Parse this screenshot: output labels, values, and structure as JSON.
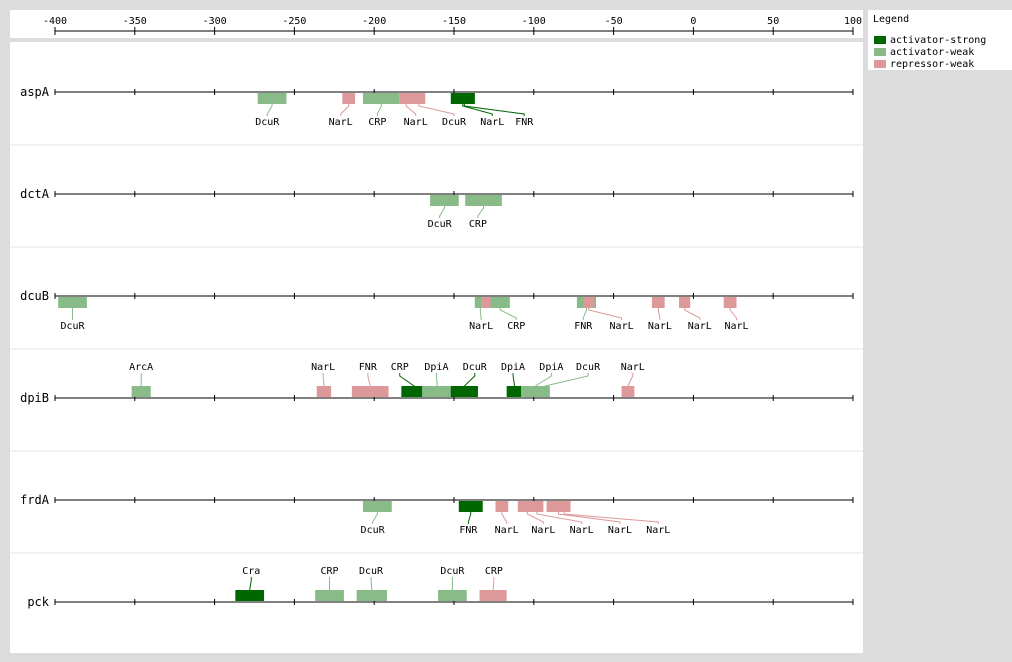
{
  "axis": {
    "ticks": [
      -400,
      -350,
      -300,
      -250,
      -200,
      -150,
      -100,
      -50,
      0,
      50,
      100
    ],
    "range": [
      -400,
      100
    ]
  },
  "legend": {
    "title": "Legend",
    "items": [
      {
        "label": "activator-strong",
        "color": "#006600"
      },
      {
        "label": "activator-weak",
        "color": "#88bb88"
      },
      {
        "label": "repressor-weak",
        "color": "#dd9999"
      }
    ]
  },
  "colors": {
    "activator-strong": "#006600",
    "activator-weak": "#88bb88",
    "repressor-weak": "#dd9999"
  },
  "genes": [
    {
      "name": "aspA",
      "sites": [
        {
          "start": -273,
          "end": -255,
          "type": "activator-weak",
          "label": "DcuR",
          "pos": "below",
          "lx": -267
        },
        {
          "start": -220,
          "end": -212,
          "type": "repressor-weak",
          "label": "NarL",
          "pos": "below",
          "lx": -221
        },
        {
          "start": -207,
          "end": -184,
          "type": "activator-weak",
          "label": "CRP",
          "pos": "below",
          "lx": -198
        },
        {
          "start": -184,
          "end": -176,
          "type": "repressor-weak",
          "label": "NarL",
          "pos": "below",
          "lx": -174
        },
        {
          "start": -176,
          "end": -168,
          "type": "repressor-weak",
          "label": "DcuR",
          "pos": "below",
          "lx": -150
        },
        {
          "start": -152,
          "end": -137,
          "type": "activator-strong",
          "label": "NarL",
          "pos": "below",
          "lx": -126
        },
        {
          "start": -150,
          "end": -137,
          "type": "activator-strong",
          "label": "FNR",
          "pos": "below",
          "lx": -106
        }
      ]
    },
    {
      "name": "dctA",
      "sites": [
        {
          "start": -165,
          "end": -147,
          "type": "activator-weak",
          "label": "DcuR",
          "pos": "below",
          "lx": -159
        },
        {
          "start": -143,
          "end": -120,
          "type": "activator-weak",
          "label": "CRP",
          "pos": "below",
          "lx": -135
        }
      ]
    },
    {
      "name": "dcuB",
      "sites": [
        {
          "start": -398,
          "end": -380,
          "type": "activator-weak",
          "label": "DcuR",
          "pos": "below",
          "lx": -389
        },
        {
          "start": -137,
          "end": -130,
          "type": "activator-weak",
          "label": "NarL",
          "pos": "below",
          "lx": -133
        },
        {
          "start": -133,
          "end": -126,
          "type": "repressor-weak",
          "label": "NarL",
          "pos": "none",
          "lx": -130
        },
        {
          "start": -127,
          "end": -115,
          "type": "activator-weak",
          "label": "CRP",
          "pos": "below",
          "lx": -111
        },
        {
          "start": -73,
          "end": -61,
          "type": "activator-weak",
          "label": "FNR",
          "pos": "below",
          "lx": -69
        },
        {
          "start": -69,
          "end": -62,
          "type": "repressor-weak",
          "label": "NarL",
          "pos": "below",
          "lx": -45
        },
        {
          "start": -26,
          "end": -18,
          "type": "repressor-weak",
          "label": "NarL",
          "pos": "below",
          "lx": -21
        },
        {
          "start": -9,
          "end": -2,
          "type": "repressor-weak",
          "label": "NarL",
          "pos": "below",
          "lx": 4
        },
        {
          "start": 19,
          "end": 27,
          "type": "repressor-weak",
          "label": "NarL",
          "pos": "below",
          "lx": 27
        }
      ]
    },
    {
      "name": "dpiB",
      "sites": [
        {
          "start": -352,
          "end": -340,
          "type": "activator-weak",
          "label": "ArcA",
          "pos": "above",
          "lx": -346
        },
        {
          "start": -236,
          "end": -227,
          "type": "repressor-weak",
          "label": "NarL",
          "pos": "above",
          "lx": -232
        },
        {
          "start": -214,
          "end": -191,
          "type": "repressor-weak",
          "label": "FNR",
          "pos": "above",
          "lx": -204
        },
        {
          "start": -183,
          "end": -167,
          "type": "activator-strong",
          "label": "CRP",
          "pos": "above",
          "lx": -184
        },
        {
          "start": -170,
          "end": -151,
          "type": "activator-weak",
          "label": "DpiA",
          "pos": "above",
          "lx": -161
        },
        {
          "start": -152,
          "end": -135,
          "type": "activator-strong",
          "label": "DcuR",
          "pos": "above",
          "lx": -137
        },
        {
          "start": -117,
          "end": -107,
          "type": "activator-strong",
          "label": "DpiA",
          "pos": "above",
          "lx": -113
        },
        {
          "start": -108,
          "end": -90,
          "type": "activator-weak",
          "label": "DpiA",
          "pos": "above",
          "lx": -89
        },
        {
          "start": -96,
          "end": -90,
          "type": "activator-weak",
          "label": "DcuR",
          "pos": "above",
          "lx": -66
        },
        {
          "start": -45,
          "end": -37,
          "type": "repressor-weak",
          "label": "NarL",
          "pos": "above",
          "lx": -38
        }
      ]
    },
    {
      "name": "frdA",
      "sites": [
        {
          "start": -207,
          "end": -189,
          "type": "activator-weak",
          "label": "DcuR",
          "pos": "below",
          "lx": -201
        },
        {
          "start": -147,
          "end": -132,
          "type": "activator-strong",
          "label": "FNR",
          "pos": "below",
          "lx": -141
        },
        {
          "start": -124,
          "end": -116,
          "type": "repressor-weak",
          "label": "NarL",
          "pos": "below",
          "lx": -117
        },
        {
          "start": -110,
          "end": -98,
          "type": "repressor-weak",
          "label": "NarL",
          "pos": "below",
          "lx": -94
        },
        {
          "start": -102,
          "end": -94,
          "type": "repressor-weak",
          "label": "NarL",
          "pos": "below",
          "lx": -70
        },
        {
          "start": -92,
          "end": -77,
          "type": "repressor-weak",
          "label": "NarL",
          "pos": "below",
          "lx": -46
        },
        {
          "start": -85,
          "end": -77,
          "type": "repressor-weak",
          "label": "NarL",
          "pos": "below",
          "lx": -22
        }
      ]
    },
    {
      "name": "pck",
      "sites": [
        {
          "start": -287,
          "end": -269,
          "type": "activator-strong",
          "label": "Cra",
          "pos": "above",
          "lx": -277
        },
        {
          "start": -237,
          "end": -219,
          "type": "activator-weak",
          "label": "CRP",
          "pos": "above",
          "lx": -228
        },
        {
          "start": -211,
          "end": -192,
          "type": "activator-weak",
          "label": "DcuR",
          "pos": "above",
          "lx": -202
        },
        {
          "start": -160,
          "end": -142,
          "type": "activator-weak",
          "label": "DcuR",
          "pos": "above",
          "lx": -151
        },
        {
          "start": -134,
          "end": -117,
          "type": "repressor-weak",
          "label": "CRP",
          "pos": "above",
          "lx": -125
        }
      ]
    }
  ]
}
